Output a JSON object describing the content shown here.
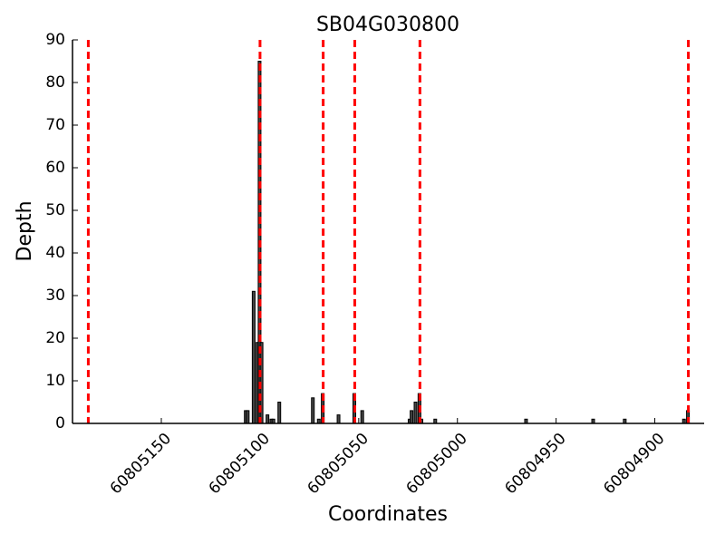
{
  "chart_data": {
    "type": "bar",
    "title": "SB04G030800",
    "xlabel": "Coordinates",
    "ylabel": "Depth",
    "x": [
      60805107,
      60805106,
      60805103,
      60805101,
      60805100,
      60805099,
      60805096,
      60805094,
      60805093,
      60805090,
      60805073,
      60805070,
      60805068,
      60805060,
      60805052,
      60805048,
      60805024,
      60805023,
      60805021,
      60805019,
      60805018,
      60805011,
      60804965,
      60804931,
      60804915,
      60804885,
      60804883
    ],
    "values": [
      3,
      3,
      31,
      19,
      85,
      19,
      2,
      1,
      1,
      5,
      6,
      1,
      7,
      2,
      7,
      3,
      1,
      3,
      5,
      7,
      1,
      1,
      1,
      1,
      1,
      1,
      3
    ],
    "color": "#444444",
    "vlines": [
      60805187,
      60805100,
      60805068,
      60805052,
      60805019,
      60804883
    ],
    "vline_color": "#ff0000",
    "xlim": [
      60805195,
      60804875
    ],
    "xticks": [
      60805150,
      60805100,
      60805050,
      60805000,
      60804950,
      60804900
    ],
    "ylim": [
      0,
      90
    ],
    "yticks": [
      0,
      10,
      20,
      30,
      40,
      50,
      60,
      70,
      80,
      90
    ]
  }
}
